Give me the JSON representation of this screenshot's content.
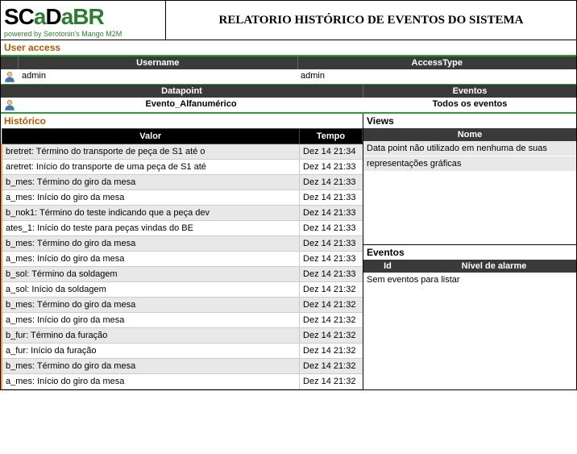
{
  "logo": {
    "text_scada": "SCaDa",
    "text_br": "BR",
    "sub": "powered by Serotonin's Mango M2M"
  },
  "title": "RELATORIO HISTÓRICO DE EVENTOS DO SISTEMA",
  "user_access": {
    "label": "User access",
    "col_username": "Username",
    "col_accesstype": "AccessType",
    "rows": [
      {
        "username": "admin",
        "accesstype": "admin"
      }
    ]
  },
  "datapoint": {
    "header": "Datapoint",
    "value": "Evento_Alfanumérico"
  },
  "eventos": {
    "header": "Eventos",
    "value": "Todos os eventos"
  },
  "historico": {
    "label": "Histórico",
    "col_valor": "Valor",
    "col_tempo": "Tempo",
    "rows": [
      {
        "v": "bretret: Término do transporte de peça de S1 até o",
        "t": "Dez 14 21:34"
      },
      {
        "v": "aretret: Início do transporte de uma peça de S1 até",
        "t": "Dez 14 21:33"
      },
      {
        "v": "b_mes: Término do giro da mesa",
        "t": "Dez 14 21:33"
      },
      {
        "v": "a_mes: Início do giro da mesa",
        "t": "Dez 14 21:33"
      },
      {
        "v": "b_nok1: Término do teste indicando que a peça dev",
        "t": "Dez 14 21:33"
      },
      {
        "v": "ates_1: Início do teste para peças vindas do BE",
        "t": "Dez 14 21:33"
      },
      {
        "v": "b_mes: Término do giro da mesa",
        "t": "Dez 14 21:33"
      },
      {
        "v": "a_mes: Início do giro da mesa",
        "t": "Dez 14 21:33"
      },
      {
        "v": "b_sol: Término da soldagem",
        "t": "Dez 14 21:33"
      },
      {
        "v": "a_sol: Início da soldagem",
        "t": "Dez 14 21:32"
      },
      {
        "v": "b_mes: Término do giro da mesa",
        "t": "Dez 14 21:32"
      },
      {
        "v": "a_mes: Início do giro da mesa",
        "t": "Dez 14 21:32"
      },
      {
        "v": "b_fur: Término da furação",
        "t": "Dez 14 21:32"
      },
      {
        "v": "a_fur: Início da furação",
        "t": "Dez 14 21:32"
      },
      {
        "v": "b_mes: Término do giro da mesa",
        "t": "Dez 14 21:32"
      },
      {
        "v": "a_mes: Início do giro da mesa",
        "t": "Dez 14 21:32"
      }
    ]
  },
  "views": {
    "label": "Views",
    "col_nome": "Nome",
    "rows": [
      "Data point não utilizado em nenhuma de suas",
      "representações gráficas"
    ]
  },
  "eventos_panel": {
    "label": "Eventos",
    "col_id": "Id",
    "col_nivel": "Nível de alarme",
    "empty": "Sem eventos para listar"
  },
  "colors": {
    "accent_green": "#2e9e2e",
    "accent_orange": "#b35900",
    "row_alt": "#e8e8e8",
    "header_dark": "#3a3a3a"
  }
}
